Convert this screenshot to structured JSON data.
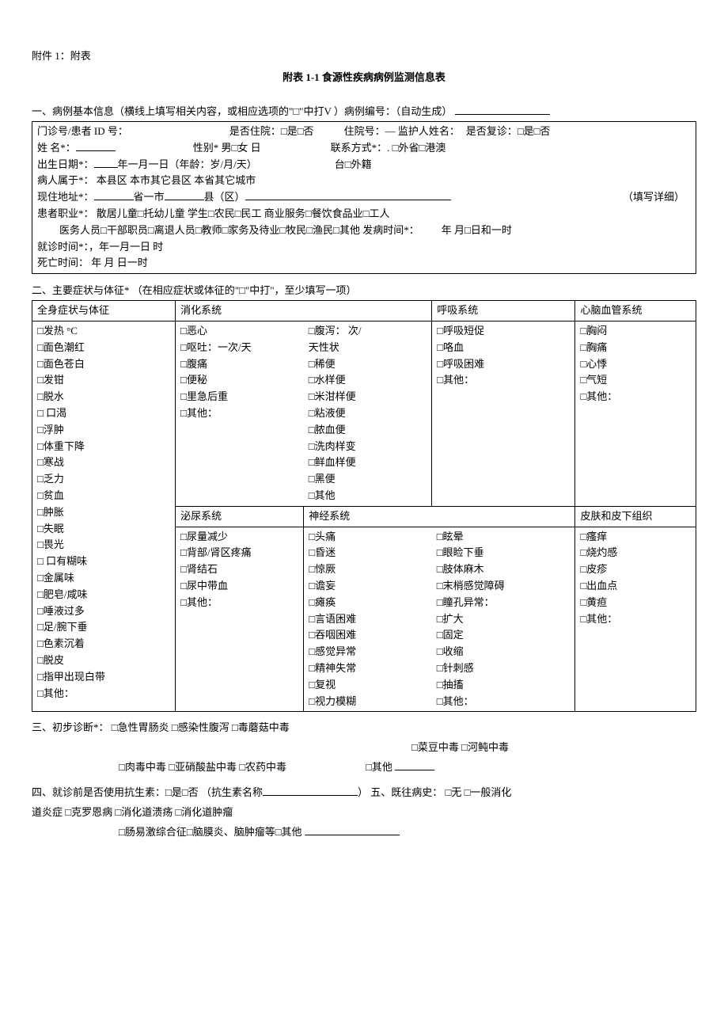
{
  "header": {
    "attachment": "附件  1：附表",
    "title": "附表  1-1 食源性疾病病例监测信息表"
  },
  "section1": {
    "title": "一、病例基本信息（横线上填写相关内容，或相应选项的\"□\"中打V ）病例编号：（自动生成）",
    "row1": {
      "p1": "门诊号/患者 ID 号：",
      "p2": "是否住院：□是□否",
      "p3": "住院号：—  监护人姓名：",
      "p4": "是否复诊：□是□否"
    },
    "row2": {
      "p1": "姓  名*：",
      "p2": "性别*  男□女  日",
      "p3": "联系方式*：.  □外省□港澳"
    },
    "row3": {
      "p1": "出生日期*：",
      "p2": "年一月一日（年龄：",
      "p3": "岁/月/天）",
      "p4": "台□外籍"
    },
    "row4": {
      "p1": "病人属于*：  本县区  本市其它县区  本省其它城市"
    },
    "row5": {
      "p1": "现住地址*：",
      "p2": "省一市",
      "p3": "县（区）",
      "p4": "（填写详细）"
    },
    "row6": {
      "p1": "患者职业*：    散居儿童□托幼儿童  学生□农民□民工  商业服务□餐饮食品业□工人"
    },
    "row7": {
      "p1": "医务人员□干部职员□离退人员□教师□家务及待业□牧民□渔民□其他  发病时间*：",
      "p2": "年  月□日和一时"
    },
    "row8": {
      "p1": "就诊时间*：，年一月一日  时"
    },
    "row9": {
      "p1": "死亡时间：  年  月  日一时"
    }
  },
  "section2": {
    "title": "二、主要症状与体征*  （在相应症状或体征的\"□\"中打\"，至少填写一项）",
    "h_general": "全身症状与体征",
    "h_digest": "消化系统",
    "h_resp": "呼吸系统",
    "h_cardio": "心脑血管系统",
    "h_urinary": "泌尿系统",
    "h_neuro": "神经系统",
    "h_skin": "皮肤和皮下组织",
    "general": [
      "□发热     °C",
      "□面色潮红",
      "□面色苍白",
      "□发钳",
      "□脱水",
      "□  口渴",
      "□浮肿",
      "□体重下降",
      "□寒战",
      "□乏力",
      "□贫血",
      "□肿胀",
      "□失眠",
      "□畏光",
      "□  口有糊味",
      "□金属味",
      "□肥皂/咸味",
      "□唾液过多",
      "□足/腕下垂",
      "□色素沉着",
      "□脱皮",
      "□指甲出现白带",
      "□其他："
    ],
    "digest_l": [
      "□恶心",
      "□呕吐：一次/天",
      "□腹痛",
      "□便秘",
      "□里急后重",
      "□其他："
    ],
    "digest_r_top": "□腹泻：        次/",
    "digest_r": [
      "天性状",
      "□稀便",
      "□水样便",
      "□米泔样便",
      "□粘液便",
      "□脓血便",
      "□洗肉样变",
      "□鲜血样便",
      "□黑便",
      "□其他"
    ],
    "resp": [
      "□呼吸短促",
      "□咯血",
      "□呼吸困难",
      "□其他："
    ],
    "cardio": [
      "□胸闷",
      "□胸痛",
      "□心悸",
      "□气短",
      "□其他："
    ],
    "urinary": [
      "□尿量减少",
      "□背部/肾区疼痛",
      "□肾结石",
      "□尿中带血",
      "□其他："
    ],
    "neuro_l": [
      "□头痛",
      "□昏迷",
      "□惊厥",
      "□谵妄",
      "□瘫痪",
      "□言语困难",
      "□吞咽困难",
      "□感觉异常",
      "□精神失常",
      "□复视",
      "□视力模糊"
    ],
    "neuro_r": [
      "□眩晕",
      "□眼睑下垂",
      "□肢体麻木",
      "□末梢感觉障碍",
      "□瞳孔异常：",
      "    □扩大",
      "    □固定",
      "    □收缩",
      "□针刺感",
      "□抽搐",
      "□其他："
    ],
    "skin": [
      "□瘙痒",
      "□烧灼感",
      "□皮疹",
      "□出血点",
      "□黄疸",
      "□其他："
    ]
  },
  "section3": {
    "title": "三、初步诊断*：  □急性胃肠炎  □感染性腹泻  □毒蘑菇中毒",
    "line2": "□菜豆中毒  □河鲀中毒",
    "line3": "□肉毒中毒  □亚硝酸盐中毒  □农药中毒",
    "line3r": "□其他"
  },
  "section4": {
    "line1a": "四、就诊前是否使用抗生素：□是□否  （抗生素名称",
    "line1b": "）  五、既往病史：    □无  □一般消化",
    "line2": "道炎症  □克罗恩病  □消化道溃疡  □消化道肿瘤",
    "line3": "□肠易激综合征□脑膜炎、脑肿瘤等□其他"
  }
}
